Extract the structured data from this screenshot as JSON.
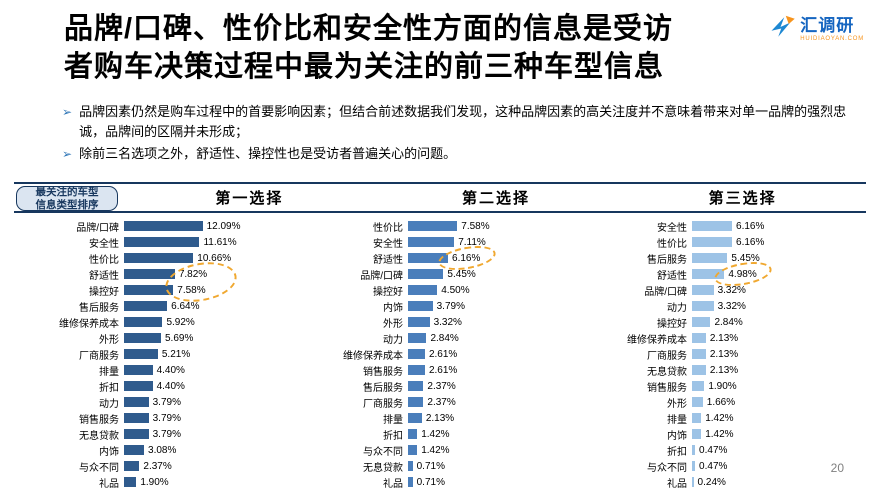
{
  "slide": {
    "title_line1": "品牌/口碑、性价比和安全性方面的信息是受访",
    "title_line2": "者购车决策过程中最为关注的前三种车型信息",
    "page_number": "20"
  },
  "logo": {
    "name": "汇调研",
    "subtitle": "HUIDIAOYAN.COM"
  },
  "bullets_icon": "➢",
  "bullets": [
    "品牌因素仍然是购车过程中的首要影响因素；但结合前述数据我们发现，这种品牌因素的高关注度并不意味着带来对单一品牌的强烈忠诚，品牌间的区隔并未形成；",
    "除前三名选项之外，舒适性、操控性也是受访者普遍关心的问题。"
  ],
  "table_header": {
    "row_label_line1": "最关注的车型",
    "row_label_line2": "信息类型排序",
    "columns": [
      "第一选择",
      "第二选择",
      "第三选择"
    ]
  },
  "chart_data": [
    {
      "type": "bar",
      "orientation": "horizontal",
      "title": "第一选择",
      "color": "#2f5b8d",
      "value_suffix": "%",
      "categories": [
        "品牌/口碑",
        "安全性",
        "性价比",
        "舒适性",
        "操控好",
        "售后服务",
        "维修保养成本",
        "外形",
        "厂商服务",
        "排量",
        "折扣",
        "动力",
        "销售服务",
        "无息贷款",
        "内饰",
        "与众不同",
        "礼品"
      ],
      "values": [
        12.09,
        11.61,
        10.66,
        7.82,
        7.58,
        6.64,
        5.92,
        5.69,
        5.21,
        4.4,
        4.4,
        3.79,
        3.79,
        3.79,
        3.08,
        2.37,
        1.9
      ],
      "highlighted_categories": [
        "舒适性",
        "操控好"
      ],
      "highlight_color": "#f0a830",
      "grid": false,
      "legend": false,
      "xlim": [
        0,
        13
      ]
    },
    {
      "type": "bar",
      "orientation": "horizontal",
      "title": "第二选择",
      "color": "#4a7ebb",
      "value_suffix": "%",
      "categories": [
        "性价比",
        "安全性",
        "舒适性",
        "品牌/口碑",
        "操控好",
        "内饰",
        "外形",
        "动力",
        "维修保养成本",
        "销售服务",
        "售后服务",
        "厂商服务",
        "排量",
        "折扣",
        "与众不同",
        "无息贷款",
        "礼品"
      ],
      "values": [
        7.58,
        7.11,
        6.16,
        5.45,
        4.5,
        3.79,
        3.32,
        2.84,
        2.61,
        2.61,
        2.37,
        2.37,
        2.13,
        1.42,
        1.42,
        0.71,
        0.71
      ],
      "highlighted_categories": [
        "舒适性"
      ],
      "highlight_color": "#f0a830",
      "grid": false,
      "legend": false,
      "xlim": [
        0,
        13
      ]
    },
    {
      "type": "bar",
      "orientation": "horizontal",
      "title": "第三选择",
      "color": "#9dc3e6",
      "value_suffix": "%",
      "categories": [
        "安全性",
        "性价比",
        "售后服务",
        "舒适性",
        "品牌/口碑",
        "动力",
        "操控好",
        "维修保养成本",
        "厂商服务",
        "无息贷款",
        "销售服务",
        "外形",
        "排量",
        "内饰",
        "折扣",
        "与众不同",
        "礼品"
      ],
      "values": [
        6.16,
        6.16,
        5.45,
        4.98,
        3.32,
        3.32,
        2.84,
        2.13,
        2.13,
        2.13,
        1.9,
        1.66,
        1.42,
        1.42,
        0.47,
        0.47,
        0.24
      ],
      "highlighted_categories": [
        "舒适性"
      ],
      "highlight_color": "#f0a830",
      "grid": false,
      "legend": false,
      "xlim": [
        0,
        13
      ]
    }
  ]
}
